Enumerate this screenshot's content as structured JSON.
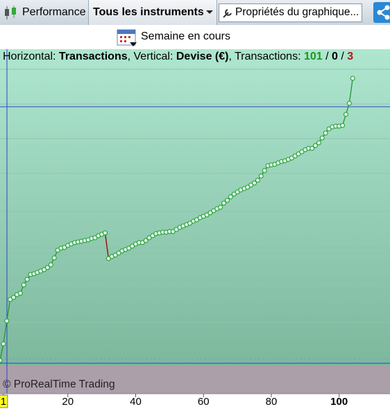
{
  "toolbar": {
    "performance": "Performance",
    "instruments": "Tous les instruments",
    "properties": "Propriétés du graphique..."
  },
  "period": "Semaine en cours",
  "chart_data": {
    "type": "line",
    "header": [
      {
        "text": "Horizontal: ",
        "bold": false,
        "color": "#000000"
      },
      {
        "text": "Transactions",
        "bold": true,
        "color": "#000000"
      },
      {
        "text": ", Vertical: ",
        "bold": false,
        "color": "#000000"
      },
      {
        "text": "Devise (€)",
        "bold": true,
        "color": "#000000"
      },
      {
        "text": ", Transactions: ",
        "bold": false,
        "color": "#000000"
      },
      {
        "text": "101",
        "bold": true,
        "color": "#1a9a1a"
      },
      {
        "text": " / ",
        "bold": false,
        "color": "#000000"
      },
      {
        "text": "0",
        "bold": true,
        "color": "#000000"
      },
      {
        "text": " / ",
        "bold": false,
        "color": "#000000"
      },
      {
        "text": "3",
        "bold": true,
        "color": "#b01818"
      }
    ],
    "watermark": "© ProRealTime Trading",
    "x": [
      0,
      1,
      2,
      3,
      4,
      5,
      6,
      7,
      8,
      9,
      10,
      11,
      12,
      13,
      14,
      15,
      16,
      17,
      18,
      19,
      20,
      21,
      22,
      23,
      24,
      25,
      26,
      27,
      28,
      29,
      30,
      31,
      32,
      33,
      34,
      35,
      36,
      37,
      38,
      39,
      40,
      41,
      42,
      43,
      44,
      45,
      46,
      47,
      48,
      49,
      50,
      51,
      52,
      53,
      54,
      55,
      56,
      57,
      58,
      59,
      60,
      61,
      62,
      63,
      64,
      65,
      66,
      67,
      68,
      69,
      70,
      71,
      72,
      73,
      74,
      75,
      76,
      77,
      78,
      79,
      80,
      81,
      82,
      83,
      84,
      85,
      86,
      87,
      88,
      89,
      90,
      91,
      92,
      93,
      94,
      95,
      96,
      97,
      98,
      99,
      100,
      101,
      102,
      103,
      104
    ],
    "values": [
      48,
      72,
      105,
      136,
      139,
      143,
      145,
      157,
      165,
      172,
      173,
      175,
      177,
      179,
      182,
      186,
      196,
      207,
      210,
      211,
      214,
      216,
      218,
      219,
      220,
      221,
      222,
      224,
      225,
      228,
      230,
      232,
      195,
      198,
      200,
      203,
      206,
      208,
      210,
      213,
      216,
      218,
      218,
      221,
      225,
      228,
      231,
      232,
      233,
      233,
      234,
      234,
      237,
      240,
      242,
      244,
      246,
      249,
      251,
      254,
      256,
      258,
      261,
      264,
      267,
      269,
      275,
      279,
      284,
      288,
      291,
      294,
      296,
      298,
      301,
      304,
      308,
      314,
      322,
      329,
      330,
      331,
      333,
      335,
      336,
      338,
      340,
      343,
      346,
      349,
      352,
      354,
      354,
      358,
      362,
      369,
      376,
      382,
      385,
      386,
      386,
      387,
      403,
      419,
      455
    ],
    "color": "#1f9a2a",
    "down_color": "#a01818",
    "xlim": [
      0,
      115
    ],
    "ylim": [
      0,
      496
    ],
    "xticks": [
      1,
      20,
      40,
      60,
      80,
      100
    ]
  }
}
